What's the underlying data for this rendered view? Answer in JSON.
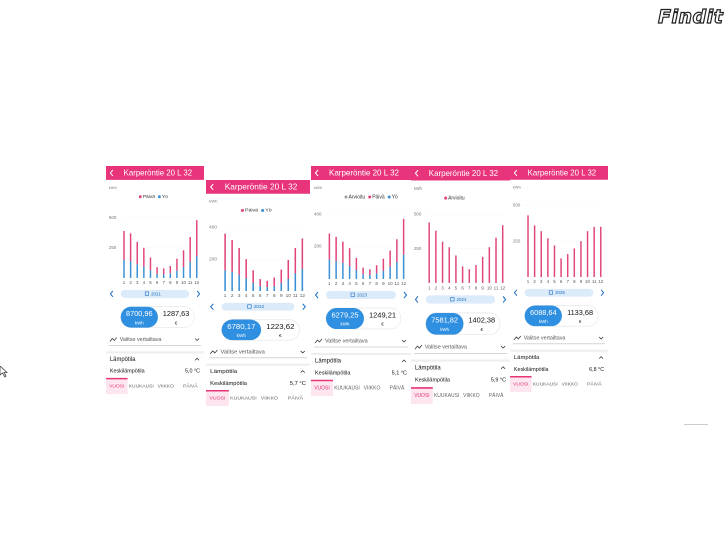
{
  "logo": "Findit",
  "app_title": "Karperöntie 20 L 32",
  "months": [
    1,
    2,
    3,
    4,
    5,
    6,
    7,
    8,
    9,
    10,
    11,
    12
  ],
  "unit_kwh": "kWh",
  "currency": "€",
  "compare_placeholder": "Valitse vertailtava",
  "section_title": "Lämpötila",
  "avg_label": "Keskilämpötila",
  "tabs": [
    "VUOSI",
    "KUUKAUSI",
    "VIIKKO",
    "PÄIVÄ"
  ],
  "screens": [
    {
      "year": "2021",
      "energy": "8700,96",
      "cost": "1287,63",
      "avg_temp": "5,0 °C",
      "ylim": [
        0,
        600
      ],
      "yticks": [
        250,
        500
      ],
      "series": [
        {
          "name": "Yö",
          "color": "#3a8fd6",
          "values": [
            150,
            140,
            115,
            95,
            65,
            35,
            30,
            40,
            60,
            90,
            135,
            180
          ]
        },
        {
          "name": "Päivä",
          "color": "#e0457b",
          "values": [
            240,
            230,
            185,
            155,
            105,
            55,
            50,
            60,
            100,
            140,
            205,
            300
          ]
        }
      ]
    },
    {
      "year": "2022",
      "energy": "6780,17",
      "cost": "1223,62",
      "avg_temp": "5,7 °C",
      "ylim": [
        0,
        450
      ],
      "yticks": [
        200,
        400
      ],
      "series": [
        {
          "name": "Yö",
          "color": "#3a8fd6",
          "values": [
            130,
            120,
            100,
            80,
            50,
            30,
            25,
            30,
            50,
            75,
            110,
            140
          ]
        },
        {
          "name": "Päivä",
          "color": "#e0457b",
          "values": [
            230,
            200,
            170,
            120,
            80,
            45,
            40,
            55,
            85,
            120,
            160,
            190
          ]
        }
      ]
    },
    {
      "year": "2023",
      "energy": "6279,25",
      "cost": "1249,21",
      "avg_temp": "5,1 °C",
      "ylim": [
        0,
        450
      ],
      "yticks": [
        200,
        400
      ],
      "series": [
        {
          "name": "Yö",
          "color": "#3a8fd6",
          "values": [
            120,
            110,
            100,
            80,
            55,
            30,
            25,
            35,
            50,
            75,
            105,
            150
          ]
        },
        {
          "name": "Päivä",
          "color": "#e0457b",
          "values": [
            160,
            150,
            130,
            110,
            75,
            40,
            35,
            50,
            75,
            100,
            140,
            220
          ]
        },
        {
          "name": "Arvioitu",
          "color": "#9e9e9e",
          "values": [
            0,
            0,
            0,
            0,
            0,
            0,
            0,
            0,
            0,
            0,
            0,
            0
          ]
        }
      ]
    },
    {
      "year": "2024",
      "energy": "7581,82",
      "cost": "1402,38",
      "avg_temp": "5,9 °C",
      "ylim": [
        0,
        550
      ],
      "yticks": [
        250,
        500
      ],
      "series": [
        {
          "name": "Arvioitu",
          "color": "#e0457b",
          "values": [
            440,
            380,
            300,
            260,
            200,
            120,
            100,
            130,
            190,
            260,
            330,
            420
          ]
        }
      ]
    },
    {
      "year": "2025",
      "energy": "6088,64",
      "cost": "1133,68",
      "avg_temp": "6,8 °C",
      "ylim": [
        0,
        500
      ],
      "yticks": [
        250,
        500
      ],
      "series": [
        {
          "color": "#e0457b",
          "values": [
            430,
            360,
            320,
            270,
            220,
            130,
            160,
            200,
            250,
            320,
            350,
            350
          ]
        }
      ]
    }
  ]
}
